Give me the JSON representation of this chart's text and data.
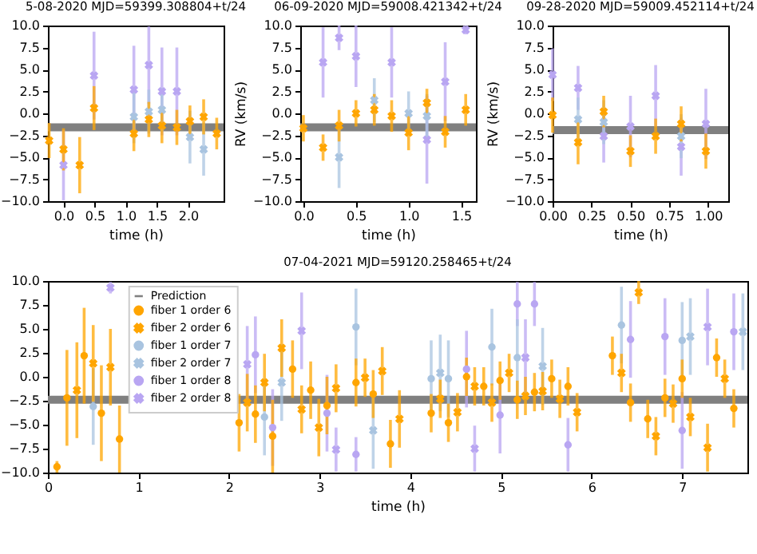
{
  "chart_data": [
    {
      "type": "scatter",
      "title": "5-08-2020 MJD=59399.308804+t/24",
      "xlabel": "time (h)",
      "xlim": [
        -0.25,
        2.57
      ],
      "xticks": [
        {
          "value": 0,
          "label": "0.0"
        },
        {
          "value": 0.5,
          "label": "0.5"
        },
        {
          "value": 1,
          "label": "1.0"
        },
        {
          "value": 1.5,
          "label": "1.5"
        },
        {
          "value": 2,
          "label": "2.0"
        }
      ],
      "ylim": [
        -10,
        10
      ],
      "yticks": [
        {
          "value": -10,
          "label": "−10.0"
        },
        {
          "value": -7.5,
          "label": "−7.5"
        },
        {
          "value": -5,
          "label": "−5.0"
        },
        {
          "value": -2.5,
          "label": "−2.5"
        },
        {
          "value": 0,
          "label": "0.0"
        },
        {
          "value": 2.5,
          "label": "2.5"
        },
        {
          "value": 5,
          "label": "5.0"
        },
        {
          "value": 7.5,
          "label": "7.5"
        },
        {
          "value": 10,
          "label": "10.0"
        }
      ],
      "series": [
        {
          "type": "line",
          "color": "#808080",
          "marker": "none",
          "x": [
            -0.25,
            2.57
          ],
          "values": [
            -1.6,
            -1.6
          ]
        },
        {
          "color": "#ffa500",
          "marker": "cross",
          "x": [
            -0.23,
            0,
            0.26,
            0.49,
            1.13,
            1.37,
            1.58,
            1.82,
            2.03,
            2.25,
            2.46
          ],
          "values": [
            -3.1,
            -4.1,
            -5.9,
            0.6,
            -2.3,
            -0.7,
            -1.4,
            -1.6,
            -0.9,
            -0.4,
            -2.3
          ],
          "errors": [
            2,
            2.4,
            3.2,
            2.5,
            2,
            2,
            2,
            2,
            1.8,
            2,
            1.8
          ]
        },
        {
          "color": "#a9c4e0",
          "marker": "cross",
          "x": [
            1.13,
            1.37,
            1.58,
            2.03,
            2.25
          ],
          "values": [
            -0.4,
            0.2,
            0.4,
            -2.7,
            -4.1
          ],
          "errors": [
            3,
            2.5,
            2.5,
            3,
            3
          ]
        },
        {
          "color": "#b9a6f2",
          "marker": "cross",
          "x": [
            0,
            0.49,
            1.13,
            1.37,
            1.58,
            1.82
          ],
          "values": [
            -5.9,
            4.3,
            2.7,
            5.5,
            2.5,
            2.5
          ],
          "errors": [
            4,
            5,
            5,
            4.4,
            5,
            5
          ]
        }
      ]
    },
    {
      "type": "scatter",
      "title": "06-09-2020 MJD=59008.421342+t/24",
      "xlabel": "time (h)",
      "ylabel": "RV (km/s)",
      "xlim": [
        -0.03,
        1.64
      ],
      "xticks": [
        {
          "value": 0,
          "label": "0.0"
        },
        {
          "value": 0.5,
          "label": "0.5"
        },
        {
          "value": 1,
          "label": "1.0"
        },
        {
          "value": 1.5,
          "label": "1.5"
        }
      ],
      "ylim": [
        -10,
        10
      ],
      "yticks": [
        {
          "value": -10,
          "label": "−10.0"
        },
        {
          "value": -7.5,
          "label": "−7.5"
        },
        {
          "value": -5,
          "label": "−5.0"
        },
        {
          "value": -2.5,
          "label": "−2.5"
        },
        {
          "value": 0,
          "label": "0.0"
        },
        {
          "value": 2.5,
          "label": "2.5"
        },
        {
          "value": 5,
          "label": "5.0"
        },
        {
          "value": 7.5,
          "label": "7.5"
        },
        {
          "value": 10,
          "label": "10.0"
        }
      ],
      "series": [
        {
          "type": "line",
          "color": "#808080",
          "marker": "none",
          "x": [
            -0.03,
            1.64
          ],
          "values": [
            -1.6,
            -1.6
          ]
        },
        {
          "color": "#ffa500",
          "marker": "cross",
          "x": [
            0,
            0.187,
            0.339,
            0.5,
            0.674,
            0.839,
            1.0,
            1.174,
            1.348,
            1.543
          ],
          "values": [
            -1.7,
            -3.9,
            -1.4,
            0,
            0.4,
            -0.3,
            -2.2,
            1.2,
            -2.1,
            0.4
          ],
          "errors": [
            1.5,
            1.5,
            1.8,
            1.5,
            1.8,
            1.8,
            2,
            1.6,
            1.8,
            1.8
          ]
        },
        {
          "color": "#a9c4e0",
          "marker": "cross",
          "x": [
            0.339,
            0.674,
            1.0,
            1.174
          ],
          "values": [
            -5.0,
            1.5,
            0,
            -0.3
          ],
          "errors": [
            3.5,
            2.5,
            2.5,
            2.5
          ]
        },
        {
          "color": "#b9a6f2",
          "marker": "cross",
          "x": [
            0.187,
            0.339,
            0.5,
            0.839,
            1.174,
            1.348,
            1.543
          ],
          "values": [
            5.8,
            8.6,
            6.5,
            5.8,
            -3.0,
            3.6,
            9.5
          ],
          "errors": [
            4,
            1.4,
            3.5,
            4,
            5,
            4.5,
            0.5
          ]
        }
      ]
    },
    {
      "type": "scatter",
      "title": "09-28-2020 MJD=59009.452114+t/24",
      "xlabel": "time (h)",
      "ylabel": "RV (km/s)",
      "xlim": [
        0,
        1.13
      ],
      "xticks": [
        {
          "value": 0,
          "label": "0.00"
        },
        {
          "value": 0.25,
          "label": "0.25"
        },
        {
          "value": 0.5,
          "label": "0.50"
        },
        {
          "value": 0.75,
          "label": "0.75"
        },
        {
          "value": 1,
          "label": "1.00"
        }
      ],
      "ylim": [
        -10,
        10
      ],
      "yticks": [
        {
          "value": -10,
          "label": "−10.0"
        },
        {
          "value": -7.5,
          "label": "−7.5"
        },
        {
          "value": -5,
          "label": "−5.0"
        },
        {
          "value": -2.5,
          "label": "−2.5"
        },
        {
          "value": 0,
          "label": "0.0"
        },
        {
          "value": 2.5,
          "label": "2.5"
        },
        {
          "value": 5,
          "label": "5.0"
        },
        {
          "value": 7.5,
          "label": "7.5"
        },
        {
          "value": 10,
          "label": "10.0"
        }
      ],
      "series": [
        {
          "type": "line",
          "color": "#808080",
          "marker": "none",
          "x": [
            0,
            1.13
          ],
          "values": [
            -1.9,
            -1.9
          ]
        },
        {
          "color": "#ffa500",
          "marker": "cross",
          "x": [
            0,
            0.164,
            0.329,
            0.501,
            0.663,
            0.827,
            0.986
          ],
          "values": [
            -0.2,
            -3.3,
            0.2,
            -4.3,
            -2.6,
            -1.2,
            -4.3
          ],
          "errors": [
            2,
            2.5,
            1.8,
            1.8,
            2,
            2,
            2
          ]
        },
        {
          "color": "#a9c4e0",
          "marker": "cross",
          "x": [
            0.164,
            0.329,
            0.827
          ],
          "values": [
            -0.7,
            -1.0,
            -2.6
          ],
          "errors": [
            2.5,
            2.5,
            2.5
          ]
        },
        {
          "color": "#b9a6f2",
          "marker": "cross",
          "x": [
            0,
            0.164,
            0.329,
            0.501,
            0.663,
            0.827,
            0.986
          ],
          "values": [
            4.4,
            2.9,
            -2.6,
            -1.5,
            2.0,
            -3.8,
            -1.2
          ],
          "errors": [
            3,
            2.5,
            3,
            3.5,
            3.5,
            3.3,
            4
          ]
        }
      ]
    },
    {
      "type": "scatter",
      "title": "07-04-2021 MJD=59120.258465+t/24",
      "xlabel": "time (h)",
      "xlim": [
        0,
        7.72
      ],
      "xticks": [
        0,
        1,
        2,
        3,
        4,
        5,
        6,
        7
      ],
      "ylim": [
        -10,
        10
      ],
      "yticks": [
        {
          "value": -10,
          "label": "−10.0"
        },
        {
          "value": -7.5,
          "label": "−7.5"
        },
        {
          "value": -5,
          "label": "−5.0"
        },
        {
          "value": -2.5,
          "label": "−2.5"
        },
        {
          "value": 0,
          "label": "0.0"
        },
        {
          "value": 2.5,
          "label": "2.5"
        },
        {
          "value": 5,
          "label": "5.0"
        },
        {
          "value": 7.5,
          "label": "7.5"
        },
        {
          "value": 10,
          "label": "10.0"
        }
      ],
      "legend": "top left",
      "series": [
        {
          "name": "Prediction",
          "type": "line",
          "color": "#808080",
          "marker": "none",
          "x": [
            0,
            7.72
          ],
          "values": [
            -2.4,
            -2.4
          ]
        },
        {
          "name": "fiber 1 order 6",
          "color": "#ffa500",
          "marker": "circle",
          "x": [
            0.1,
            0.21,
            0.4,
            0.59,
            0.79,
            2.11,
            2.29,
            2.48,
            2.7,
            2.9,
            3.08,
            3.4,
            3.59,
            3.78,
            4.23,
            4.42,
            4.62,
            4.81,
            4.99,
            5.18,
            5.37,
            5.56,
            5.74,
            6.23,
            6.43,
            6.62,
            6.81,
            7.0,
            7.38,
            7.57
          ],
          "values": [
            -9.4,
            -2.2,
            2.2,
            -3.8,
            -6.5,
            -4.8,
            -3.9,
            -6.2,
            0.8,
            -1.4,
            -3.0,
            -0.6,
            -1.8,
            -7.0,
            -3.8,
            -4.8,
            0,
            -1.0,
            -0.4,
            -2.4,
            -1.6,
            -0.2,
            -1.0,
            2.2,
            -2.7,
            -4.4,
            -2.2,
            -0.2,
            2.0,
            -3.3
          ],
          "errors": [
            0.6,
            5,
            5,
            5,
            3.5,
            3,
            3,
            3.8,
            3,
            3,
            3,
            2.5,
            2.5,
            2.5,
            2,
            2,
            2,
            2,
            2,
            2,
            2,
            2,
            2,
            2,
            2,
            2,
            2,
            2,
            2,
            2
          ]
        },
        {
          "name": "fiber 2 order 6",
          "color": "#ffa500",
          "marker": "cross",
          "x": [
            0.32,
            0.5,
            0.69,
            2.2,
            2.39,
            2.58,
            2.8,
            2.99,
            3.18,
            3.5,
            3.69,
            3.88,
            4.33,
            4.52,
            4.71,
            4.9,
            5.09,
            5.27,
            5.46,
            5.65,
            5.84,
            6.33,
            6.52,
            6.71,
            6.9,
            7.09,
            7.28,
            7.47
          ],
          "values": [
            -1.4,
            1.4,
            1.0,
            -2.7,
            -0.6,
            3.0,
            -3.4,
            -5.3,
            -1.2,
            -0.1,
            0.6,
            -4.4,
            -2.3,
            -3.7,
            -1.0,
            -2.7,
            0.4,
            -2.0,
            -1.5,
            -2.3,
            -3.7,
            0.4,
            8.8,
            -6.2,
            -2.8,
            -4.2,
            -7.4,
            -0.2
          ],
          "errors": [
            5,
            4,
            4,
            3,
            3,
            3,
            2.5,
            3,
            2.5,
            2,
            2.5,
            3,
            2,
            2,
            2,
            2,
            2,
            2,
            2,
            2,
            2,
            2,
            1.2,
            2,
            2,
            2,
            2.5,
            2
          ]
        },
        {
          "name": "fiber 1 order 7",
          "color": "#a9c4e0",
          "marker": "circle",
          "x": [
            0.5,
            2.39,
            3.4,
            4.23,
            4.42,
            4.9,
            5.18,
            6.33,
            7.0
          ],
          "values": [
            -3.1,
            -4.2,
            5.2,
            -0.2,
            -0.2,
            3.1,
            2.0,
            5.4,
            3.8
          ],
          "errors": [
            4,
            4,
            4,
            4,
            4,
            4,
            4,
            4,
            4
          ]
        },
        {
          "name": "fiber 2 order 7",
          "color": "#a9c4e0",
          "marker": "cross",
          "x": [
            2.58,
            3.59,
            4.33,
            5.46,
            7.09,
            7.67
          ],
          "values": [
            -0.6,
            -5.6,
            0.4,
            1.1,
            4.2,
            4.7
          ],
          "errors": [
            4,
            4,
            4,
            4,
            4,
            4
          ]
        },
        {
          "name": "fiber 1 order 8",
          "color": "#b9a6f2",
          "marker": "circle",
          "x": [
            2.29,
            2.48,
            3.08,
            3.4,
            4.62,
            4.99,
            5.18,
            5.37,
            5.74,
            6.43,
            6.81,
            7.0,
            7.57
          ],
          "values": [
            2.3,
            -5.3,
            -3.8,
            -8.1,
            0.8,
            -4.0,
            7.6,
            7.6,
            -7.1,
            3.9,
            4.2,
            -5.6,
            4.7
          ],
          "errors": [
            4,
            4,
            4,
            1.8,
            4,
            4,
            2.3,
            2.3,
            2.8,
            4,
            4,
            4,
            4
          ]
        },
        {
          "name": "fiber 2 order 8",
          "color": "#b9a6f2",
          "marker": "cross",
          "x": [
            0.69,
            2.2,
            2.8,
            3.18,
            4.71,
            5.27,
            7.28
          ],
          "values": [
            9.3,
            1.3,
            4.8,
            -7.6,
            -7.5,
            2.0,
            5.2
          ],
          "errors": [
            0.6,
            4,
            4,
            2.3,
            2.4,
            4,
            4
          ]
        }
      ]
    }
  ]
}
